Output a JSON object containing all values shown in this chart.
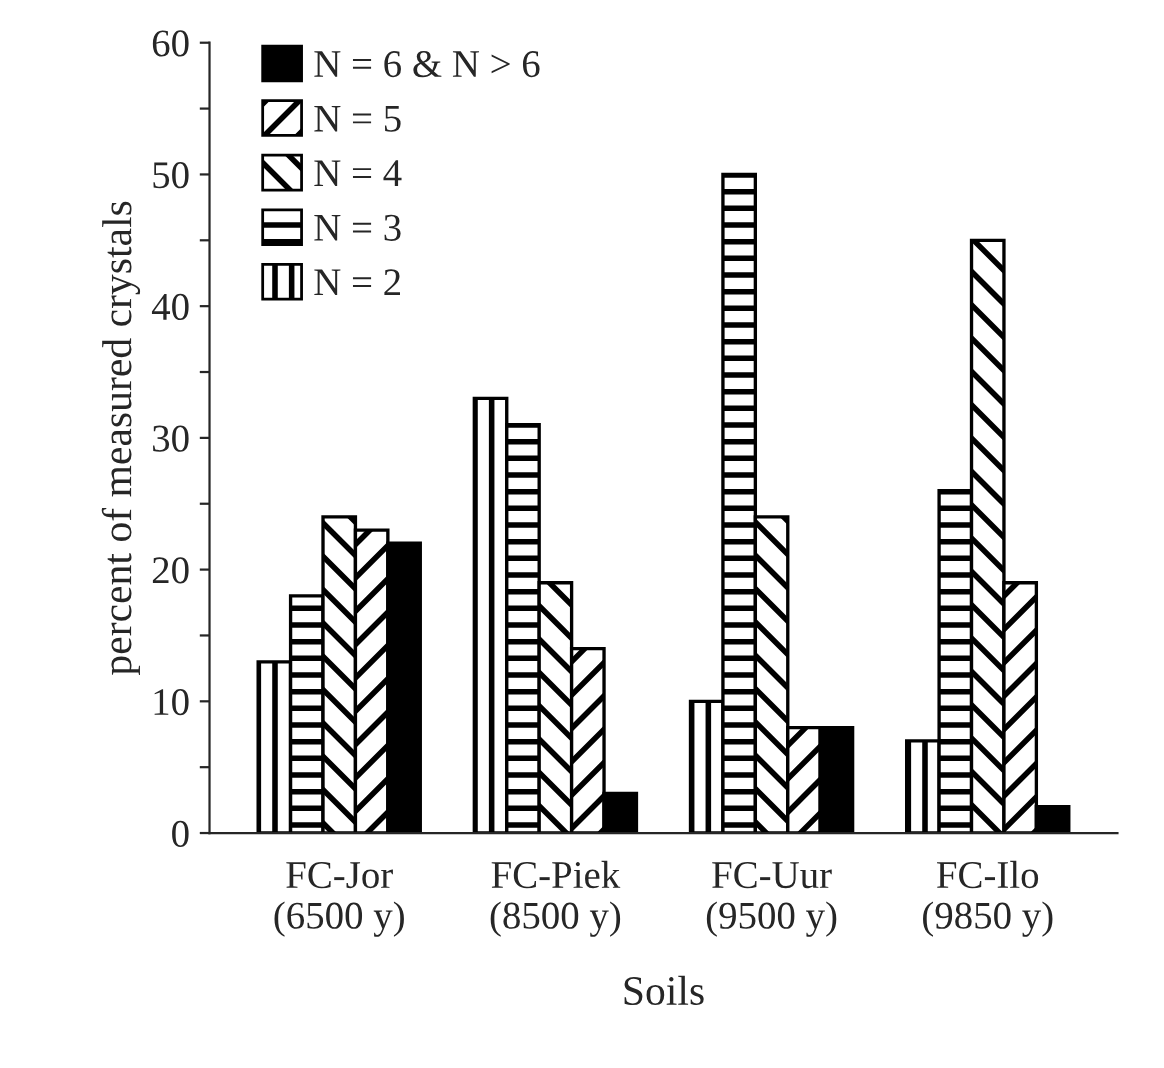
{
  "chart_data": {
    "type": "bar",
    "xlabel": "Soils",
    "ylabel": "percent of measured crystals",
    "categories": [
      "FC-Jor\n(6500 y)",
      "FC-Piek\n(8500 y)",
      "FC-Uur\n(9500 y)",
      "FC-Ilo\n(9850 y)"
    ],
    "series": [
      {
        "name": "N = 2",
        "color": "#000000",
        "values": [
          13,
          33,
          10,
          7
        ]
      },
      {
        "name": "N = 3",
        "color": "#000000",
        "values": [
          18,
          31,
          50,
          26
        ]
      },
      {
        "name": "N = 4",
        "color": "#000000",
        "values": [
          24,
          19,
          24,
          45
        ]
      },
      {
        "name": "N = 5",
        "color": "#000000",
        "values": [
          23,
          14,
          8,
          19
        ]
      },
      {
        "name": "N = 6 & N > 6",
        "color": "#000000",
        "values": [
          22,
          3,
          8,
          2
        ]
      }
    ],
    "ylim": [
      0,
      60
    ],
    "yticks": [
      0,
      {
        "value": 5,
        "label": null
      },
      10,
      {
        "value": 15,
        "label": null
      },
      20,
      {
        "value": 25,
        "label": null
      },
      30,
      {
        "value": 35,
        "label": null
      },
      40,
      {
        "value": 45,
        "label": null
      },
      50,
      {
        "value": 55,
        "label": null
      },
      60
    ],
    "grid": false,
    "legend": "top left"
  }
}
